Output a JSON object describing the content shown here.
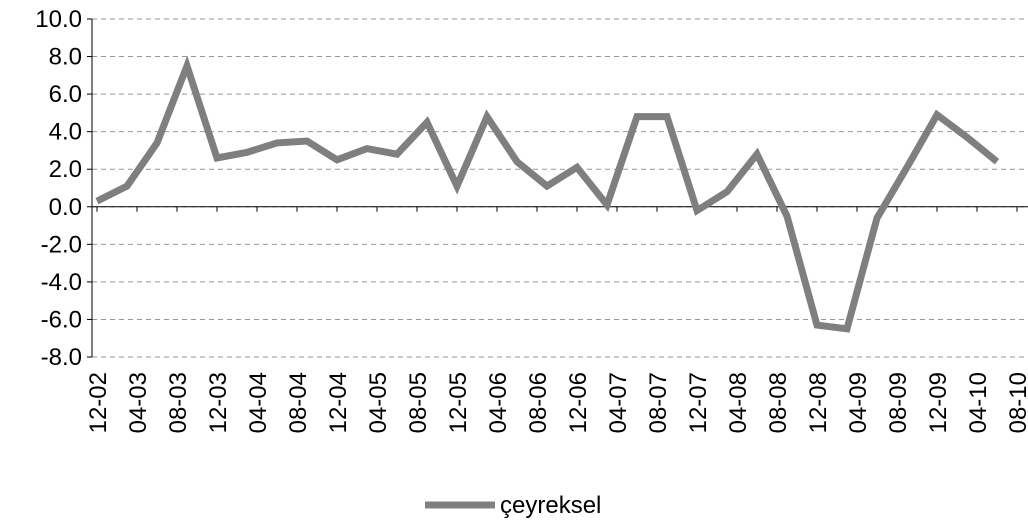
{
  "chart_data": {
    "type": "line",
    "categories": [
      "12-02",
      null,
      null,
      null,
      "04-03",
      null,
      null,
      null,
      "08-03",
      null,
      null,
      null,
      "12-03",
      null,
      null,
      null,
      "04-04",
      null,
      null,
      null,
      "08-04",
      null,
      null,
      null,
      "12-04",
      null,
      null,
      null,
      "04-05",
      null,
      null,
      null,
      "08-05",
      null,
      null,
      null,
      "12-05",
      null,
      null,
      null,
      "04-06",
      null,
      null,
      null,
      "08-06",
      null,
      null,
      null,
      "12-06",
      null,
      null,
      null,
      "04-07",
      null,
      null,
      null,
      "08-07",
      null,
      null,
      null,
      "12-07",
      null,
      null,
      null,
      "04-08",
      null,
      null,
      null,
      "08-08",
      null,
      null,
      null,
      "12-08",
      null,
      null,
      null,
      "04-09",
      null,
      null,
      null,
      "08-09",
      null,
      null,
      null,
      "12-09",
      null,
      null,
      null,
      "04-10",
      null,
      null,
      null,
      "08-10"
    ],
    "series": [
      {
        "name": "çeyreksel",
        "color": "#7f7f7f",
        "values": [
          0.3,
          null,
          null,
          1.1,
          null,
          null,
          3.4,
          null,
          null,
          7.5,
          null,
          null,
          2.6,
          null,
          null,
          2.9,
          null,
          null,
          3.4,
          null,
          null,
          3.5,
          null,
          null,
          2.5,
          null,
          null,
          3.1,
          null,
          null,
          2.8,
          null,
          null,
          4.5,
          null,
          null,
          1.1,
          null,
          null,
          4.8,
          null,
          null,
          2.4,
          null,
          null,
          1.1,
          null,
          null,
          2.1,
          null,
          null,
          0.1,
          null,
          null,
          4.8,
          null,
          null,
          4.8,
          null,
          null,
          -0.2,
          null,
          null,
          0.8,
          null,
          null,
          2.8,
          null,
          null,
          -0.5,
          null,
          null,
          -6.3,
          null,
          null,
          -6.5,
          null,
          null,
          -0.6,
          null,
          null,
          2.1,
          null,
          null,
          4.9,
          null,
          null,
          3.7,
          null,
          null,
          2.4,
          null,
          null
        ]
      }
    ],
    "ylim": [
      -8,
      10
    ],
    "yticks": [
      {
        "value": -8,
        "label": "-8.0"
      },
      {
        "value": -6,
        "label": "-6.0"
      },
      {
        "value": -4,
        "label": "-4.0"
      },
      {
        "value": -2,
        "label": "-2.0"
      },
      {
        "value": 0,
        "label": "0.0"
      },
      {
        "value": 2,
        "label": "2.0"
      },
      {
        "value": 4,
        "label": "4.0"
      },
      {
        "value": 6,
        "label": "6.0"
      },
      {
        "value": 8,
        "label": "8.0"
      },
      {
        "value": 10,
        "label": "10.0"
      }
    ],
    "grid": true,
    "span_gaps": true,
    "legend": "bottom"
  }
}
